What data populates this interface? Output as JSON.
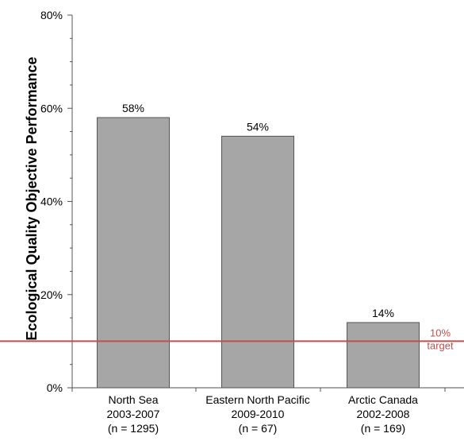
{
  "chart_data": {
    "type": "bar",
    "ylabel": "Ecological Quality Objective Performance",
    "ylim": [
      0,
      80
    ],
    "y_ticks": [
      0,
      20,
      40,
      60,
      80
    ],
    "y_tick_labels": [
      "0%",
      "20%",
      "40%",
      "60%",
      "80%"
    ],
    "y_minor_step": 5,
    "grid": false,
    "categories": [
      [
        "North Sea",
        "2003-2007",
        "(n = 1295)"
      ],
      [
        "Eastern North Pacific",
        "2009-2010",
        "(n = 67)"
      ],
      [
        "Arctic Canada",
        "2002-2008",
        "(n = 169)"
      ]
    ],
    "values": [
      58,
      54,
      14
    ],
    "data_labels": [
      "58%",
      "54%",
      "14%"
    ],
    "bar_color": "#a6a6a6",
    "bar_edge_color": "#555555",
    "target": {
      "value": 10,
      "label_lines": [
        "10%",
        "target"
      ],
      "color": "#c0504d"
    }
  }
}
